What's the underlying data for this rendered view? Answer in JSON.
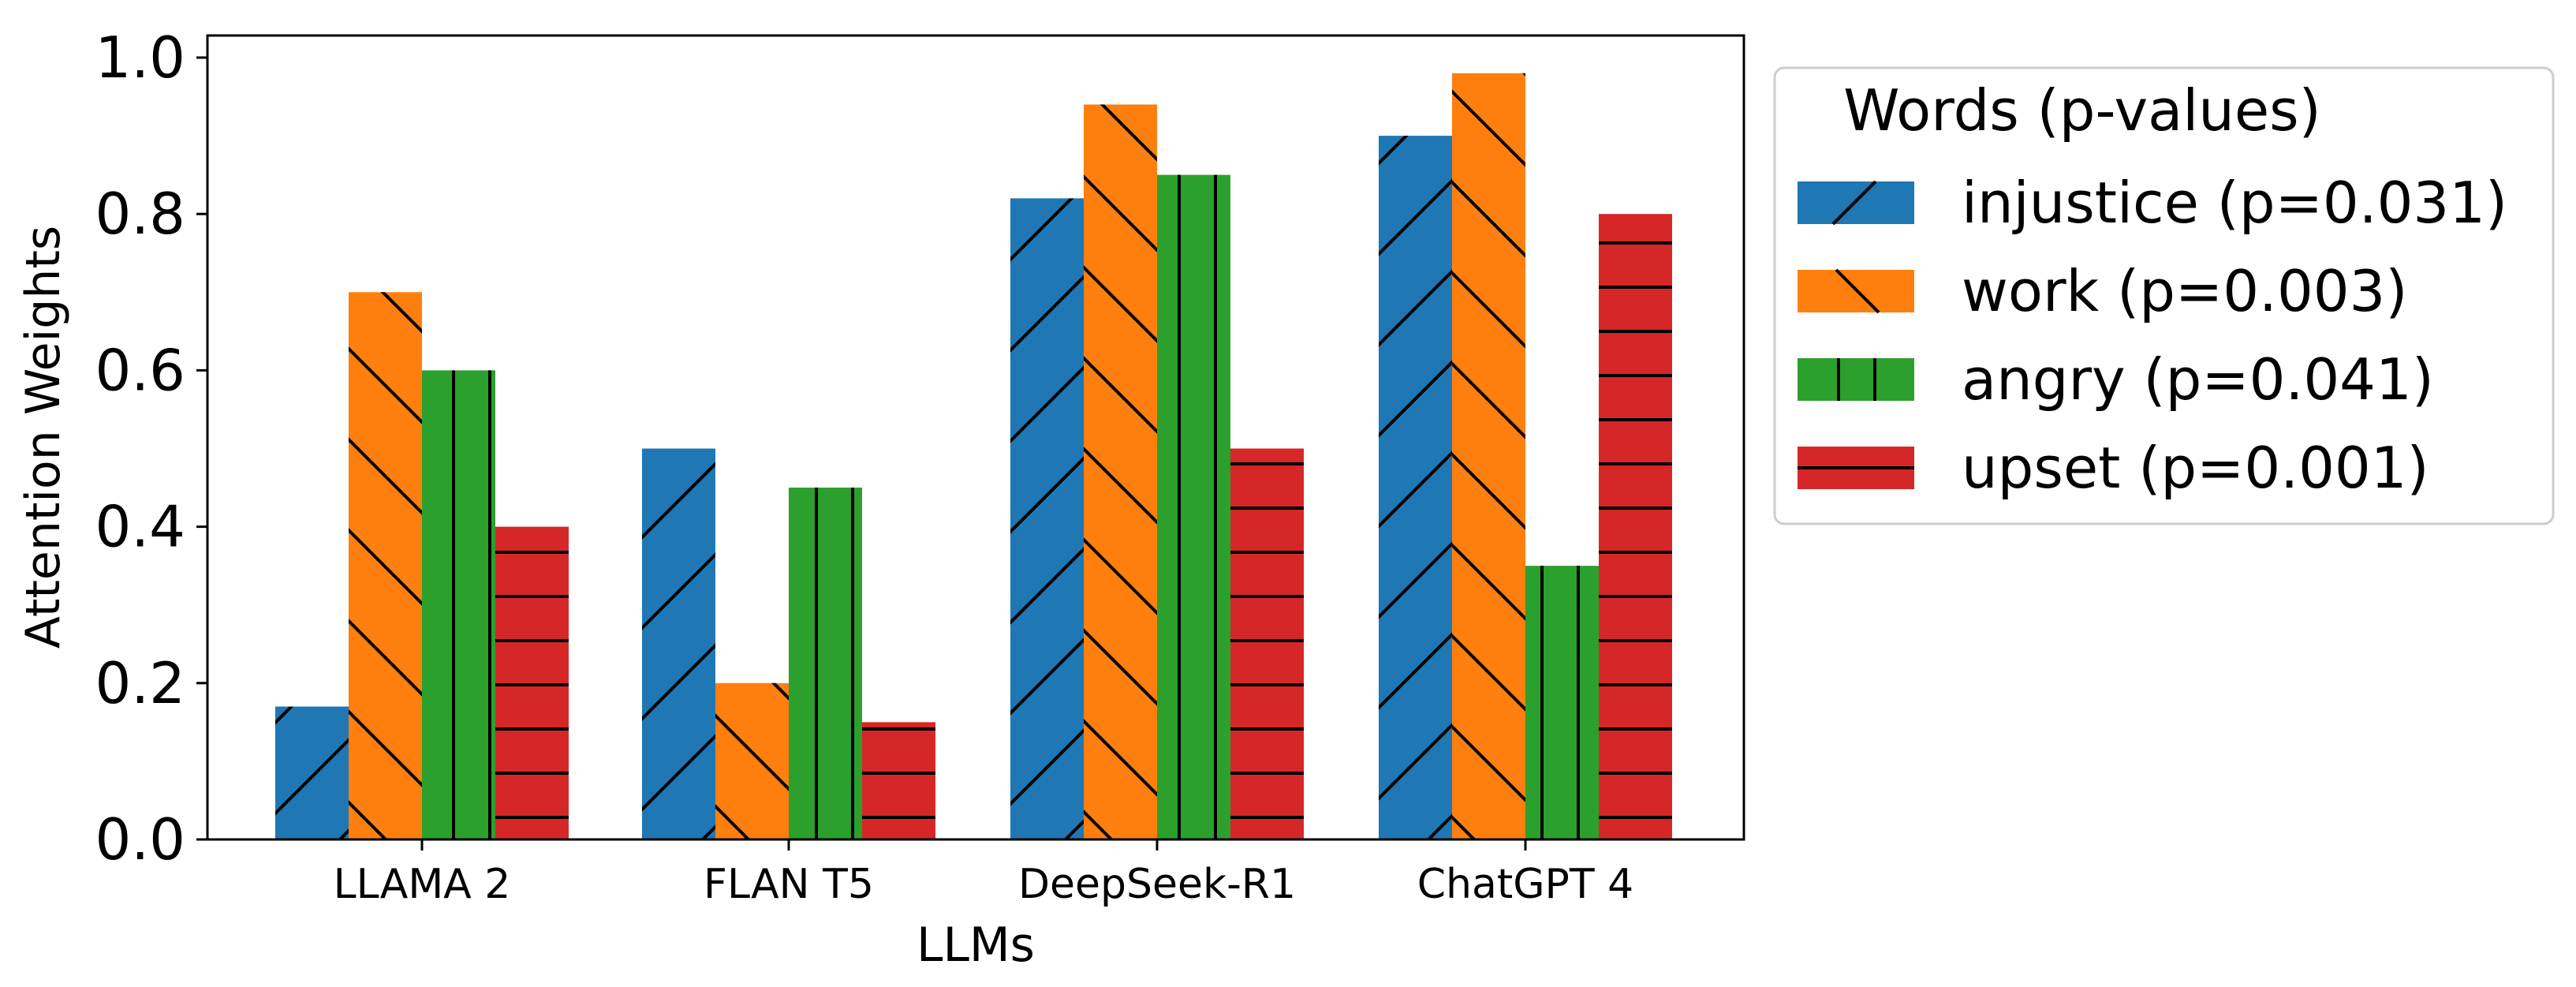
{
  "chart_data": {
    "type": "bar",
    "title": "",
    "xlabel": "LLMs",
    "ylabel": "Attention Weights",
    "ylim": [
      0,
      1.03
    ],
    "yticks": [
      "0.0",
      "0.2",
      "0.4",
      "0.6",
      "0.8",
      "1.0"
    ],
    "categories": [
      "LLAMA 2",
      "FLAN T5",
      "DeepSeek-R1",
      "ChatGPT 4"
    ],
    "grid": false,
    "legend": {
      "title": "Words (p-values)",
      "placement": "outside right, top"
    },
    "series": [
      {
        "name": "injustice (p=0.031)",
        "color": "#1f77b4",
        "hatch": "forward-diagonal",
        "values": [
          0.17,
          0.5,
          0.82,
          0.9
        ]
      },
      {
        "name": "work (p=0.003)",
        "color": "#ff7f0e",
        "hatch": "back-diagonal",
        "values": [
          0.7,
          0.2,
          0.94,
          0.98
        ]
      },
      {
        "name": "angry (p=0.041)",
        "color": "#2ca02c",
        "hatch": "vertical",
        "values": [
          0.6,
          0.45,
          0.85,
          0.35
        ]
      },
      {
        "name": "upset (p=0.001)",
        "color": "#d62728",
        "hatch": "horizontal",
        "values": [
          0.4,
          0.15,
          0.5,
          0.8
        ]
      }
    ]
  }
}
